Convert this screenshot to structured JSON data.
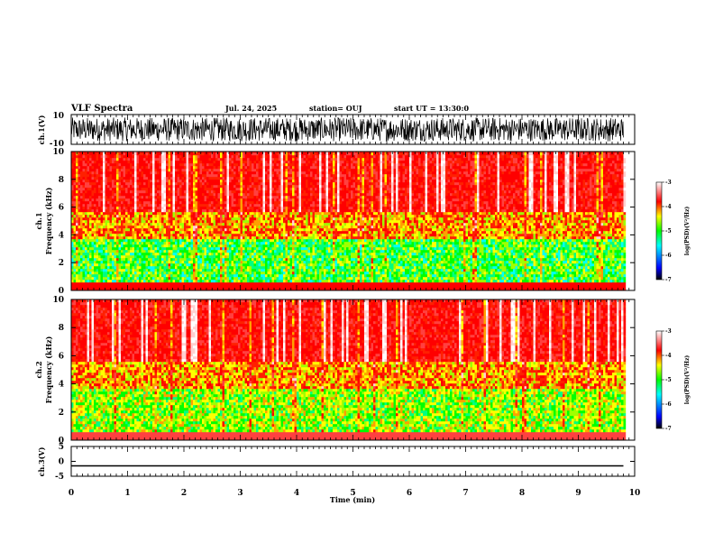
{
  "header": {
    "title": "VLF Spectra",
    "date": "Jul. 24, 2025",
    "station": "station= OUJ",
    "start_time": "start UT = 13:30:0"
  },
  "chart_data": [
    {
      "type": "line",
      "panel": "ch1-waveform",
      "ylabel": "ch.1(V)",
      "ylim": [
        -10,
        10
      ],
      "yticks": [
        "10",
        "-10"
      ],
      "xlim": [
        0,
        10
      ],
      "description_of_data": "dense noisy waveform spanning roughly 0 to 9.8 min",
      "data_end_min": 9.8,
      "approx_range_V": [
        -8,
        8
      ]
    },
    {
      "type": "heatmap",
      "panel": "ch1-spectrogram",
      "ylabel": "ch.1 Frequency (kHz)",
      "ylim": [
        0,
        10
      ],
      "yticks": [
        "0",
        "2",
        "4",
        "6",
        "8",
        "10"
      ],
      "xlim": [
        0,
        10
      ],
      "data_end_min": 9.8,
      "colorbar": {
        "label": "log(PSD)(V²/Hz)",
        "range": [
          -7,
          -3
        ],
        "ticks": [
          "-3",
          "-4",
          "-5",
          "-6",
          "-7"
        ]
      }
    },
    {
      "type": "heatmap",
      "panel": "ch2-spectrogram",
      "ylabel": "ch.2 Frequency (kHz)",
      "ylim": [
        0,
        10
      ],
      "yticks": [
        "0",
        "2",
        "4",
        "6",
        "8",
        "10"
      ],
      "xlim": [
        0,
        10
      ],
      "data_end_min": 9.8,
      "colorbar": {
        "label": "log(PSD)(V²/Hz)",
        "range": [
          -7,
          -3
        ],
        "ticks": [
          "-3",
          "-4",
          "-5",
          "-6",
          "-7"
        ]
      }
    },
    {
      "type": "line",
      "panel": "ch3-waveform",
      "ylabel": "ch.3(V)",
      "ylim": [
        -5,
        5
      ],
      "yticks": [
        "5",
        "0",
        "-5"
      ],
      "xlim": [
        0,
        10
      ],
      "data_end_min": 9.8,
      "constant_value_V": -1.5
    }
  ],
  "xaxis": {
    "label": "Time (min)",
    "ticks": [
      "0",
      "1",
      "2",
      "3",
      "4",
      "5",
      "6",
      "7",
      "8",
      "9",
      "10"
    ]
  },
  "colorbar_colors": [
    "#000000",
    "#0000ff",
    "#00ffff",
    "#00ff00",
    "#ffff00",
    "#ff0000",
    "#ffffff"
  ]
}
